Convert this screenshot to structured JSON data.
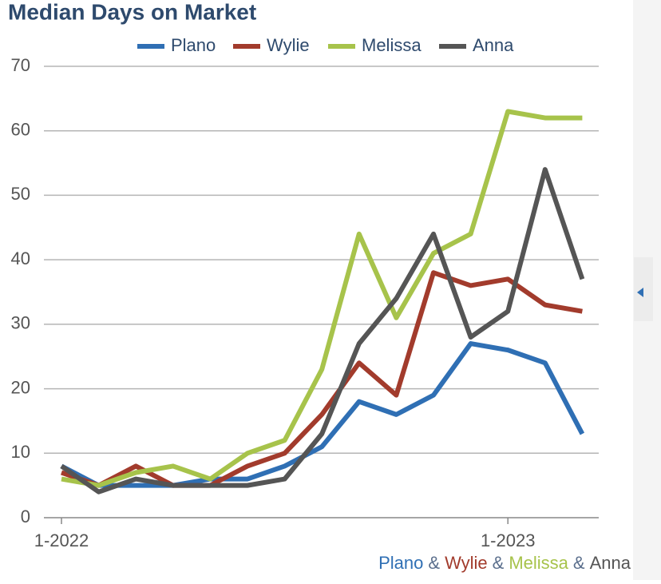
{
  "chart_data": {
    "type": "line",
    "title": "Median Days on Market",
    "categories": [
      "1-2022",
      null,
      null,
      null,
      null,
      null,
      null,
      null,
      null,
      null,
      null,
      null,
      "1-2023",
      null,
      null
    ],
    "series": [
      {
        "name": "Plano",
        "color": "#2f6fb4",
        "values": [
          8,
          5,
          5,
          5,
          6,
          6,
          8,
          11,
          18,
          16,
          19,
          27,
          26,
          24,
          13
        ]
      },
      {
        "name": "Wylie",
        "color": "#a23b2c",
        "values": [
          7,
          5,
          8,
          5,
          5,
          8,
          10,
          16,
          24,
          19,
          38,
          36,
          37,
          33,
          32
        ]
      },
      {
        "name": "Melissa",
        "color": "#a7c34b",
        "values": [
          6,
          5,
          7,
          8,
          6,
          10,
          12,
          23,
          44,
          31,
          41,
          44,
          63,
          62,
          62
        ]
      },
      {
        "name": "Anna",
        "color": "#555555",
        "values": [
          8,
          4,
          6,
          5,
          5,
          5,
          6,
          13,
          27,
          34,
          44,
          28,
          32,
          54,
          37
        ]
      }
    ],
    "ylim": [
      0,
      70
    ],
    "yticks": [
      0,
      10,
      20,
      30,
      40,
      50,
      60,
      70
    ],
    "grid": true,
    "legend": "top",
    "footer_separator": "&"
  }
}
